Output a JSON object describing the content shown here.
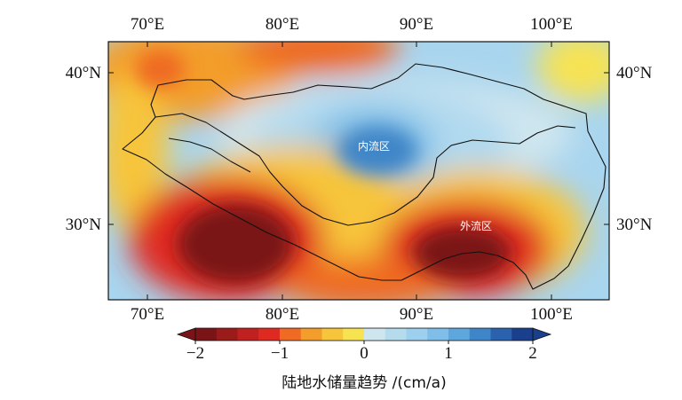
{
  "map": {
    "lon_ticks": [
      "70°E",
      "80°E",
      "90°E",
      "100°E"
    ],
    "lat_ticks": [
      "40°N",
      "30°N"
    ],
    "regions": [
      {
        "label": "内流区",
        "kind": "endorheic"
      },
      {
        "label": "外流区",
        "kind": "exorheic"
      }
    ]
  },
  "colorbar": {
    "title": "陆地水储量趋势 /(cm/a)",
    "tick_labels": [
      "−2",
      "−1",
      "0",
      "1",
      "2"
    ],
    "range": [
      -2,
      2
    ],
    "step": 0.25,
    "colors": [
      "#7a1416",
      "#9b1b1b",
      "#c0201f",
      "#df2a22",
      "#ef6a23",
      "#f39d2a",
      "#f7c53b",
      "#f7e352",
      "#cfe6ef",
      "#b4dced",
      "#9dd0ee",
      "#7fbee8",
      "#5ea7dd",
      "#3f86c8",
      "#2a62ad",
      "#1a3f8c"
    ]
  }
}
